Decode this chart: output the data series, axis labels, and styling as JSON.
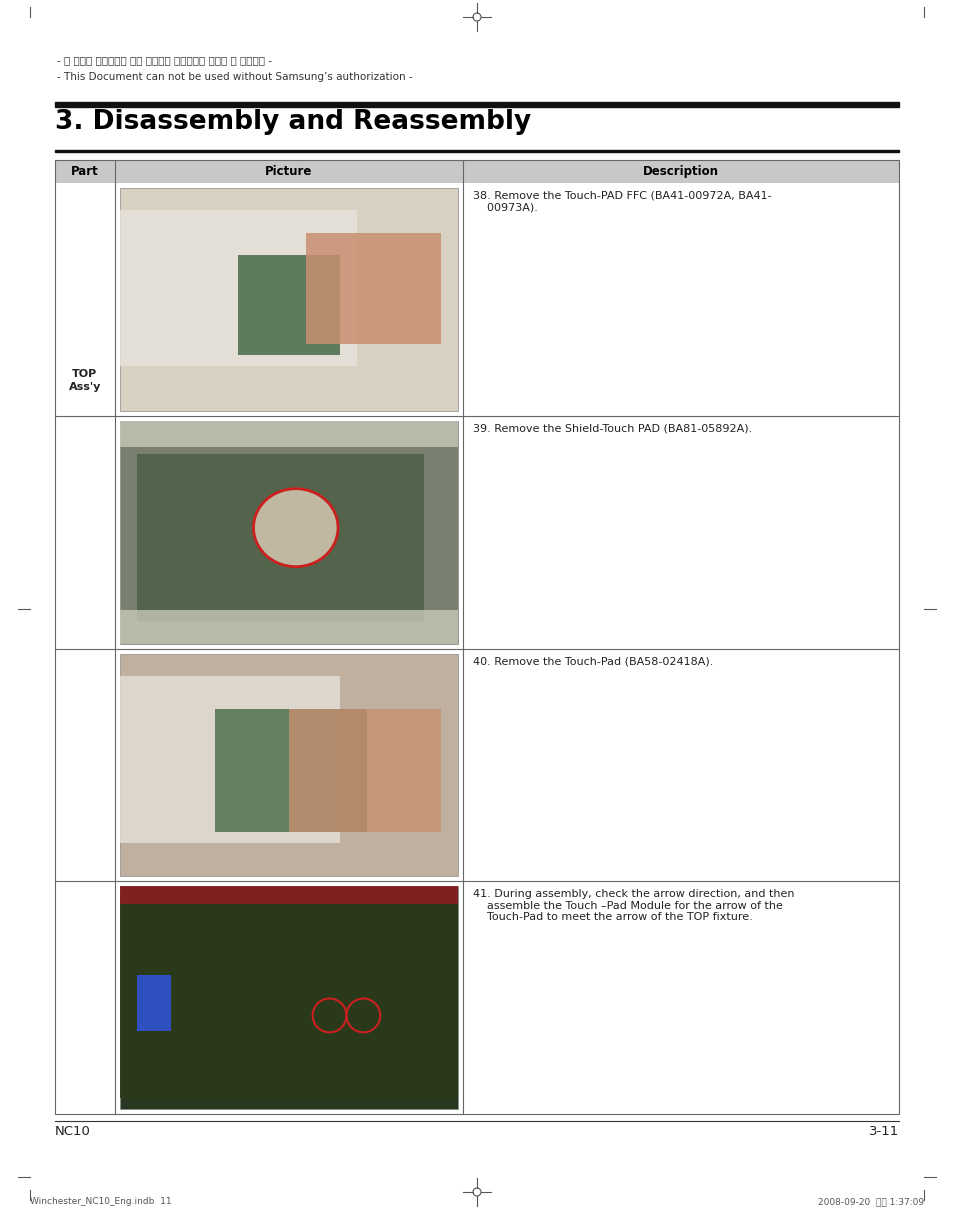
{
  "page_bg": "#ffffff",
  "top_watermark_korean": "- 이 문서는 삼성전자의 기술 자산으로 승인자만이 사용할 수 있습니다 -",
  "top_watermark_english": "- This Document can not be used without Samsung’s authorization -",
  "section_title": "3. Disassembly and Reassembly",
  "table_header": [
    "Part",
    "Picture",
    "Description"
  ],
  "part_label": "TOP\nAss'y",
  "descriptions": [
    "38. Remove the Touch-PAD FFC (BA41-00972A, BA41-\n    00973A).",
    "39. Remove the Shield-Touch PAD (BA81-05892A).",
    "40. Remove the Touch-Pad (BA58-02418A).",
    "41. During assembly, check the arrow direction, and then\n    assemble the Touch –Pad Module for the arrow of the\n    Touch-Pad to meet the arrow of the TOP fixture."
  ],
  "footer_left": "NC10",
  "footer_right": "3-11",
  "bottom_left": "Winchester_NC10_Eng.indb  11",
  "bottom_right": "2008-09-20  오후 1:37:09",
  "header_bg": "#c8c8c8",
  "header_text_color": "#000000",
  "border_color": "#666666",
  "text_color": "#222222",
  "photo_colors": [
    "#b0a898",
    "#8a8a7a",
    "#b8a090",
    "#2a3a20"
  ],
  "photo_colors2": [
    "#d0c8b8",
    "#9a9a8a",
    "#c8b0a0",
    "#3a4a30"
  ]
}
